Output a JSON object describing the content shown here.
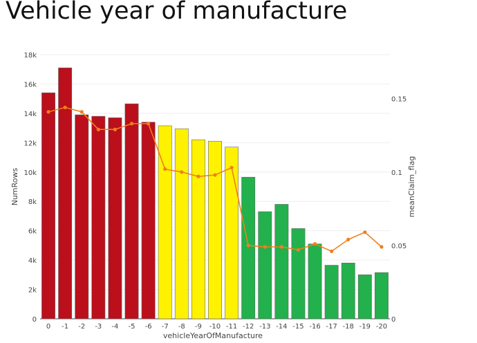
{
  "chart_data": {
    "type": "bar",
    "title": "Vehicle year of manufacture",
    "xlabel": "vehicleYearOfManufacture",
    "ylabel": "NumRows",
    "y2label": "meanClaim_flag",
    "categories": [
      "0",
      "-1",
      "-2",
      "-3",
      "-4",
      "-5",
      "-6",
      "-7",
      "-8",
      "-9",
      "-10",
      "-11",
      "-12",
      "-13",
      "-14",
      "-15",
      "-16",
      "-17",
      "-18",
      "-19",
      "-20"
    ],
    "bar_values": [
      15400,
      17100,
      13900,
      13800,
      13700,
      14650,
      13400,
      13150,
      12950,
      12200,
      12100,
      11700,
      9650,
      7300,
      7800,
      6150,
      5100,
      3650,
      3800,
      3000,
      3150
    ],
    "bar_colors": [
      "#bb0f1c",
      "#bb0f1c",
      "#bb0f1c",
      "#bb0f1c",
      "#bb0f1c",
      "#bb0f1c",
      "#bb0f1c",
      "#fff200",
      "#fff200",
      "#fff200",
      "#fff200",
      "#fff200",
      "#22b14c",
      "#22b14c",
      "#22b14c",
      "#22b14c",
      "#22b14c",
      "#22b14c",
      "#22b14c",
      "#22b14c",
      "#22b14c"
    ],
    "line_values": [
      0.141,
      0.144,
      0.141,
      0.129,
      0.129,
      0.133,
      0.133,
      0.102,
      0.1,
      0.097,
      0.098,
      0.103,
      0.05,
      0.049,
      0.049,
      0.047,
      0.051,
      0.046,
      0.054,
      0.059,
      0.049
    ],
    "line_color": "#f07f1a",
    "ylim": [
      0,
      18000
    ],
    "y_ticks": [
      0,
      2000,
      4000,
      6000,
      8000,
      10000,
      12000,
      14000,
      16000,
      18000
    ],
    "y_tick_labels": [
      "0",
      "2k",
      "4k",
      "6k",
      "8k",
      "10k",
      "12k",
      "14k",
      "16k",
      "18k"
    ],
    "y2lim": [
      0,
      0.18
    ],
    "y2_ticks": [
      0,
      0.05,
      0.1,
      0.15
    ],
    "y2_tick_labels": [
      "0",
      "0.05",
      "0.1",
      "0.15"
    ],
    "grid": true
  }
}
